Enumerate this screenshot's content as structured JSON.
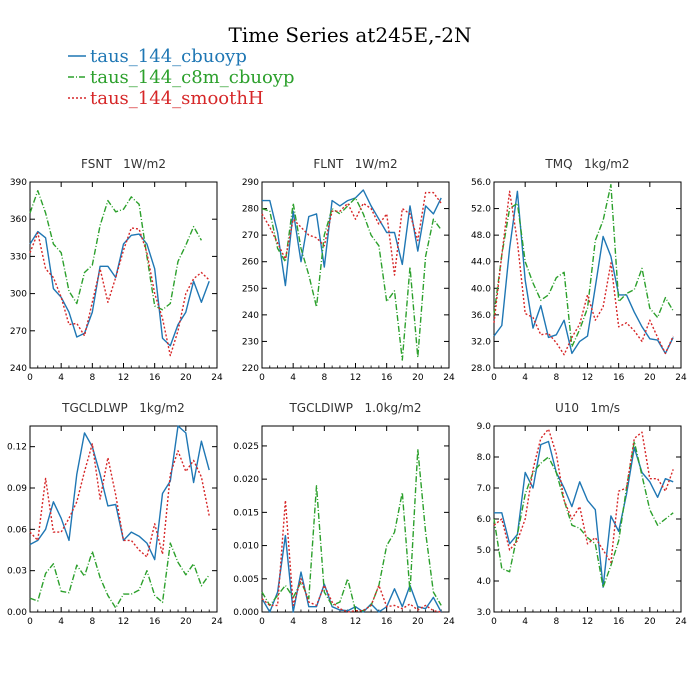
{
  "figure": {
    "title": "Time Series at245E,-2N",
    "legend": [
      {
        "label": "taus_144_cbuoyp",
        "color": "#1f77b4",
        "dash": "solid"
      },
      {
        "label": "taus_144_c8m_cbuoyp",
        "color": "#2ca02c",
        "dash": "dashdot"
      },
      {
        "label": "taus_144_smoothH",
        "color": "#d62728",
        "dash": "dotted"
      }
    ]
  },
  "chart_data": [
    {
      "type": "line",
      "title": "FSNT   1W/m2",
      "x": [
        0,
        1,
        2,
        3,
        4,
        5,
        6,
        7,
        8,
        9,
        10,
        11,
        12,
        13,
        14,
        15,
        16,
        17,
        18,
        19,
        20,
        21,
        22,
        23
      ],
      "xlim": [
        0,
        24
      ],
      "xticks": [
        "0",
        "4",
        "8",
        "12",
        "16",
        "20",
        "24"
      ],
      "ylim": [
        240,
        390
      ],
      "yticks": [
        "240",
        "270",
        "300",
        "330",
        "360",
        "390"
      ],
      "series": [
        {
          "name": "taus_144_cbuoyp",
          "values": [
            340,
            350,
            345,
            304,
            297,
            285,
            265,
            268,
            285,
            322,
            322,
            313,
            340,
            347,
            348,
            340,
            320,
            264,
            258,
            275,
            285,
            310,
            293,
            310
          ]
        },
        {
          "name": "taus_144_c8m_cbuoyp",
          "values": [
            365,
            383,
            365,
            340,
            333,
            302,
            292,
            317,
            323,
            355,
            375,
            366,
            368,
            378,
            372,
            330,
            290,
            287,
            292,
            326,
            339,
            354,
            343,
            null
          ]
        },
        {
          "name": "taus_144_smoothH",
          "values": [
            333,
            349,
            320,
            313,
            297,
            275,
            276,
            266,
            293,
            320,
            293,
            313,
            335,
            353,
            352,
            333,
            300,
            280,
            250,
            270,
            300,
            312,
            317,
            311
          ]
        }
      ]
    },
    {
      "type": "line",
      "title": "FLNT   1W/m2",
      "x": [
        0,
        1,
        2,
        3,
        4,
        5,
        6,
        7,
        8,
        9,
        10,
        11,
        12,
        13,
        14,
        15,
        16,
        17,
        18,
        19,
        20,
        21,
        22,
        23
      ],
      "xlim": [
        0,
        24
      ],
      "xticks": [
        "0",
        "4",
        "8",
        "12",
        "16",
        "20",
        "24"
      ],
      "ylim": [
        220,
        290
      ],
      "yticks": [
        "220",
        "230",
        "240",
        "250",
        "260",
        "270",
        "280",
        "290"
      ],
      "series": [
        {
          "name": "taus_144_cbuoyp",
          "values": [
            283,
            283,
            271,
            251,
            279,
            260,
            277,
            278,
            258,
            283,
            281,
            283,
            284,
            287,
            281,
            276,
            271,
            271,
            259,
            281,
            264,
            281,
            278,
            284
          ]
        },
        {
          "name": "taus_144_c8m_cbuoyp",
          "values": [
            280,
            279,
            265,
            260,
            282,
            265,
            255,
            243,
            270,
            280,
            278,
            281,
            284,
            278,
            270,
            266,
            245,
            249,
            223,
            258,
            224,
            262,
            276,
            272
          ]
        },
        {
          "name": "taus_144_smoothH",
          "values": [
            278,
            273,
            267,
            261,
            276,
            273,
            270,
            269,
            266,
            279,
            279,
            282,
            276,
            282,
            280,
            274,
            278,
            255,
            280,
            278,
            268,
            286,
            286,
            282
          ]
        }
      ]
    },
    {
      "type": "line",
      "title": "TMQ   1kg/m2",
      "x": [
        0,
        1,
        2,
        3,
        4,
        5,
        6,
        7,
        8,
        9,
        10,
        11,
        12,
        13,
        14,
        15,
        16,
        17,
        18,
        19,
        20,
        21,
        22,
        23
      ],
      "xlim": [
        0,
        24
      ],
      "xticks": [
        "0",
        "4",
        "8",
        "12",
        "16",
        "20",
        "24"
      ],
      "ylim": [
        28.0,
        56.0
      ],
      "yticks": [
        "28.0",
        "32.0",
        "36.0",
        "40.0",
        "44.0",
        "48.0",
        "52.0",
        "56.0"
      ],
      "series": [
        {
          "name": "taus_144_cbuoyp",
          "values": [
            32.8,
            34.4,
            46.0,
            54.6,
            41.2,
            34.0,
            37.4,
            32.6,
            33.0,
            35.2,
            30.2,
            32.0,
            32.8,
            40.2,
            47.8,
            44.8,
            39.0,
            39.0,
            36.4,
            34.2,
            32.4,
            32.2,
            30.2,
            32.6
          ]
        },
        {
          "name": "taus_144_c8m_cbuoyp",
          "values": [
            36.0,
            45.0,
            52.0,
            52.8,
            44.0,
            40.8,
            38.2,
            39.0,
            41.6,
            42.4,
            31.2,
            33.8,
            37.0,
            47.2,
            50.2,
            55.6,
            38.0,
            39.2,
            39.8,
            43.0,
            37.0,
            35.6,
            38.6,
            36.6
          ]
        },
        {
          "name": "taus_144_smoothH",
          "values": [
            34.8,
            45.0,
            54.6,
            47.0,
            36.2,
            35.6,
            33.0,
            33.2,
            31.8,
            30.0,
            32.6,
            34.6,
            39.0,
            35.2,
            37.2,
            43.8,
            34.2,
            34.8,
            33.6,
            32.0,
            35.2,
            32.6,
            30.2,
            32.8
          ]
        }
      ]
    },
    {
      "type": "line",
      "title": "TGCLDLWP   1kg/m2",
      "x": [
        0,
        1,
        2,
        3,
        4,
        5,
        6,
        7,
        8,
        9,
        10,
        11,
        12,
        13,
        14,
        15,
        16,
        17,
        18,
        19,
        20,
        21,
        22,
        23
      ],
      "xlim": [
        0,
        24
      ],
      "xticks": [
        "0",
        "4",
        "8",
        "12",
        "16",
        "20",
        "24"
      ],
      "ylim": [
        0.0,
        0.135
      ],
      "yticks": [
        "0.00",
        "0.03",
        "0.06",
        "0.09",
        "0.12"
      ],
      "series": [
        {
          "name": "taus_144_cbuoyp",
          "values": [
            0.049,
            0.052,
            0.06,
            0.08,
            0.068,
            0.052,
            0.1,
            0.13,
            0.12,
            0.1,
            0.077,
            0.078,
            0.052,
            0.058,
            0.055,
            0.05,
            0.038,
            0.086,
            0.095,
            0.135,
            0.13,
            0.094,
            0.124,
            0.103
          ]
        },
        {
          "name": "taus_144_c8m_cbuoyp",
          "values": [
            0.01,
            0.008,
            0.028,
            0.035,
            0.015,
            0.014,
            0.034,
            0.026,
            0.044,
            0.025,
            0.012,
            0.003,
            0.013,
            0.013,
            0.016,
            0.03,
            0.012,
            0.007,
            0.05,
            0.036,
            0.027,
            0.035,
            0.019,
            0.027
          ]
        },
        {
          "name": "taus_144_smoothH",
          "values": [
            0.058,
            0.052,
            0.097,
            0.058,
            0.058,
            0.068,
            0.08,
            0.102,
            0.122,
            0.082,
            0.112,
            0.085,
            0.052,
            0.052,
            0.045,
            0.04,
            0.064,
            0.042,
            0.1,
            0.117,
            0.102,
            0.11,
            0.098,
            0.07
          ]
        }
      ]
    },
    {
      "type": "line",
      "title": "TGCLDIWP   1.0kg/m2",
      "x": [
        0,
        1,
        2,
        3,
        4,
        5,
        6,
        7,
        8,
        9,
        10,
        11,
        12,
        13,
        14,
        15,
        16,
        17,
        18,
        19,
        20,
        21,
        22,
        23
      ],
      "xlim": [
        0,
        24
      ],
      "xticks": [
        "0",
        "4",
        "8",
        "12",
        "16",
        "20",
        "24"
      ],
      "ylim": [
        0.0,
        0.028
      ],
      "yticks": [
        "0.000",
        "0.005",
        "0.010",
        "0.015",
        "0.020",
        "0.025"
      ],
      "series": [
        {
          "name": "taus_144_cbuoyp",
          "values": [
            0.002,
            0.0,
            0.003,
            0.0115,
            0.0,
            0.006,
            0.0008,
            0.0008,
            0.0042,
            0.0008,
            0.0003,
            0.0002,
            0.0008,
            0.0,
            0.0012,
            0.0,
            0.0008,
            0.0035,
            0.0008,
            0.004,
            0.0008,
            0.0005,
            0.0022,
            0.0
          ]
        },
        {
          "name": "taus_144_c8m_cbuoyp",
          "values": [
            0.003,
            0.001,
            0.0025,
            0.004,
            0.0022,
            0.0045,
            0.002,
            0.019,
            0.003,
            0.001,
            0.0015,
            0.005,
            0.0002,
            0.0002,
            0.001,
            0.004,
            0.01,
            0.012,
            0.018,
            0.003,
            0.0245,
            0.012,
            0.003,
            0.001
          ]
        },
        {
          "name": "taus_144_smoothH",
          "values": [
            0.002,
            0.001,
            0.001,
            0.0168,
            0.001,
            0.005,
            0.0015,
            0.001,
            0.004,
            0.0015,
            0.0005,
            0.0,
            0.0002,
            0.0002,
            0.001,
            0.004,
            0.0008,
            0.001,
            0.0005,
            0.0012,
            0.0003,
            0.001,
            0.0002,
            0.0
          ]
        }
      ]
    },
    {
      "type": "line",
      "title": "U10   1m/s",
      "x": [
        0,
        1,
        2,
        3,
        4,
        5,
        6,
        7,
        8,
        9,
        10,
        11,
        12,
        13,
        14,
        15,
        16,
        17,
        18,
        19,
        20,
        21,
        22,
        23
      ],
      "xlim": [
        0,
        24
      ],
      "xticks": [
        "0",
        "4",
        "8",
        "12",
        "16",
        "20",
        "24"
      ],
      "ylim": [
        3.0,
        9.0
      ],
      "yticks": [
        "3.0",
        "4.0",
        "5.0",
        "6.0",
        "7.0",
        "8.0",
        "9.0"
      ],
      "series": [
        {
          "name": "taus_144_cbuoyp",
          "values": [
            6.2,
            6.2,
            5.2,
            5.5,
            7.5,
            7.0,
            8.4,
            8.5,
            7.5,
            7.0,
            6.4,
            7.2,
            6.6,
            6.3,
            3.8,
            6.1,
            5.6,
            6.8,
            8.3,
            7.5,
            7.2,
            6.7,
            7.3,
            7.2
          ]
        },
        {
          "name": "taus_144_c8m_cbuoyp",
          "values": [
            6.0,
            4.4,
            4.3,
            5.5,
            6.8,
            7.5,
            7.8,
            8.0,
            7.5,
            6.6,
            5.8,
            5.7,
            5.4,
            5.2,
            3.8,
            4.5,
            5.3,
            7.0,
            8.5,
            7.4,
            6.3,
            5.8,
            6.0,
            6.2
          ]
        },
        {
          "name": "taus_144_smoothH",
          "values": [
            5.8,
            6.0,
            5.0,
            5.3,
            6.0,
            7.6,
            8.6,
            8.9,
            8.1,
            6.6,
            6.0,
            6.4,
            5.2,
            5.4,
            5.0,
            4.6,
            6.9,
            7.0,
            8.6,
            8.8,
            7.3,
            7.3,
            6.9,
            7.6
          ]
        }
      ]
    }
  ]
}
